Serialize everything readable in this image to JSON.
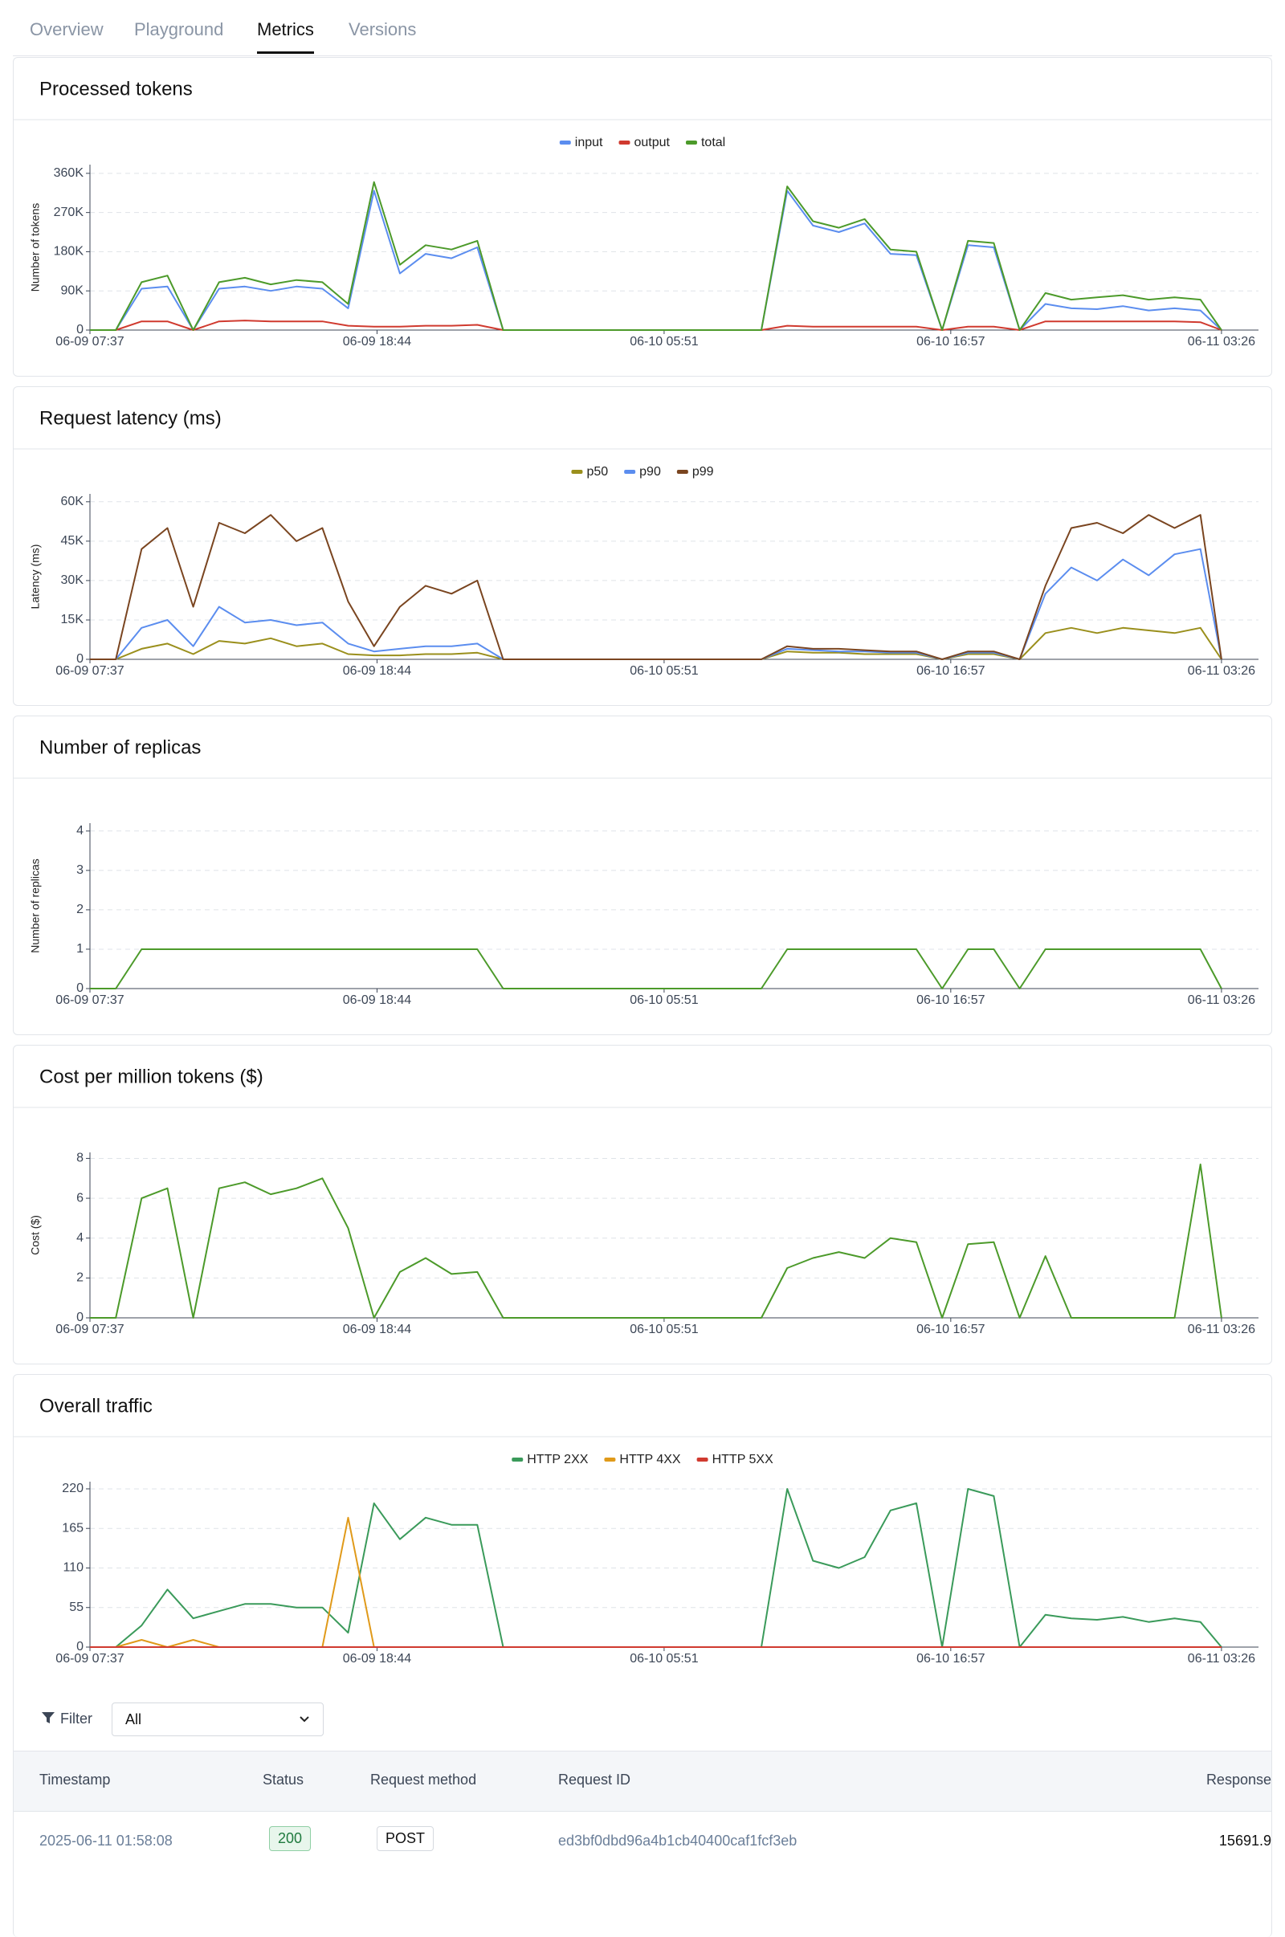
{
  "tabs": [
    "Overview",
    "Playground",
    "Metrics",
    "Versions"
  ],
  "active_tab": 2,
  "chart_data": [
    {
      "type": "line",
      "title": "Processed tokens",
      "y_label": "Number of tokens",
      "legend": true,
      "grid": true,
      "x": [
        "06-09 07:37",
        "06-09 08:37",
        "06-09 09:37",
        "06-09 10:37",
        "06-09 11:37",
        "06-09 12:37",
        "06-09 13:37",
        "06-09 14:37",
        "06-09 15:37",
        "06-09 16:37",
        "06-09 17:37",
        "06-09 18:37",
        "06-09 19:37",
        "06-09 20:37",
        "06-09 21:37",
        "06-09 22:37",
        "06-09 23:37",
        "06-10 00:37",
        "06-10 01:37",
        "06-10 02:37",
        "06-10 03:37",
        "06-10 04:37",
        "06-10 05:37",
        "06-10 06:37",
        "06-10 07:37",
        "06-10 08:37",
        "06-10 09:37",
        "06-10 10:37",
        "06-10 11:37",
        "06-10 12:37",
        "06-10 13:37",
        "06-10 14:37",
        "06-10 15:37",
        "06-10 16:37",
        "06-10 17:37",
        "06-10 18:37",
        "06-10 19:37",
        "06-10 20:37",
        "06-10 21:37",
        "06-10 22:37",
        "06-10 23:37",
        "06-11 00:37",
        "06-11 01:37",
        "06-11 02:37",
        "06-11 03:26"
      ],
      "xlim": [
        "06-09 07:37",
        "06-11 04:52"
      ],
      "xticks": [
        "06-09 07:37",
        "06-09 18:44",
        "06-10 05:51",
        "06-10 16:57",
        "06-11 03:26"
      ],
      "ylim": [
        0,
        380000
      ],
      "yticks": [
        0,
        {
          "value": 90000,
          "label": "90K"
        },
        {
          "value": 180000,
          "label": "180K"
        },
        {
          "value": 270000,
          "label": "270K"
        },
        {
          "value": 360000,
          "label": "360K"
        }
      ],
      "series": [
        {
          "name": "input",
          "color": "#5b8def",
          "values": [
            0,
            0,
            95000,
            100000,
            0,
            95000,
            100000,
            90000,
            100000,
            95000,
            50000,
            320000,
            130000,
            175000,
            165000,
            190000,
            0,
            0,
            0,
            0,
            0,
            0,
            0,
            0,
            0,
            0,
            0,
            320000,
            240000,
            225000,
            245000,
            175000,
            172000,
            0,
            195000,
            190000,
            0,
            60000,
            50000,
            48000,
            55000,
            45000,
            50000,
            45000,
            0
          ]
        },
        {
          "name": "output",
          "color": "#d03a2f",
          "values": [
            0,
            0,
            20000,
            20000,
            0,
            20000,
            22000,
            20000,
            20000,
            20000,
            10000,
            8000,
            8000,
            10000,
            10000,
            12000,
            0,
            0,
            0,
            0,
            0,
            0,
            0,
            0,
            0,
            0,
            0,
            10000,
            8000,
            8000,
            8000,
            8000,
            8000,
            0,
            8000,
            8000,
            0,
            20000,
            20000,
            20000,
            20000,
            20000,
            20000,
            18000,
            0
          ]
        },
        {
          "name": "total",
          "color": "#4c9a2a",
          "values": [
            0,
            0,
            110000,
            125000,
            0,
            110000,
            120000,
            105000,
            115000,
            110000,
            60000,
            340000,
            150000,
            195000,
            185000,
            205000,
            0,
            0,
            0,
            0,
            0,
            0,
            0,
            0,
            0,
            0,
            0,
            330000,
            250000,
            235000,
            255000,
            185000,
            180000,
            0,
            205000,
            200000,
            0,
            85000,
            70000,
            75000,
            80000,
            70000,
            75000,
            70000,
            0
          ]
        }
      ]
    },
    {
      "type": "line",
      "title": "Request latency (ms)",
      "y_label": "Latency (ms)",
      "legend": true,
      "grid": true,
      "x": [
        "06-09 07:37",
        "06-09 08:37",
        "06-09 09:37",
        "06-09 10:37",
        "06-09 11:37",
        "06-09 12:37",
        "06-09 13:37",
        "06-09 14:37",
        "06-09 15:37",
        "06-09 16:37",
        "06-09 17:37",
        "06-09 18:37",
        "06-09 19:37",
        "06-09 20:37",
        "06-09 21:37",
        "06-09 22:37",
        "06-09 23:37",
        "06-10 00:37",
        "06-10 01:37",
        "06-10 02:37",
        "06-10 03:37",
        "06-10 04:37",
        "06-10 05:37",
        "06-10 06:37",
        "06-10 07:37",
        "06-10 08:37",
        "06-10 09:37",
        "06-10 10:37",
        "06-10 11:37",
        "06-10 12:37",
        "06-10 13:37",
        "06-10 14:37",
        "06-10 15:37",
        "06-10 16:37",
        "06-10 17:37",
        "06-10 18:37",
        "06-10 19:37",
        "06-10 20:37",
        "06-10 21:37",
        "06-10 22:37",
        "06-10 23:37",
        "06-11 00:37",
        "06-11 01:37",
        "06-11 02:37",
        "06-11 03:26"
      ],
      "xlim": [
        "06-09 07:37",
        "06-11 04:52"
      ],
      "xticks": [
        "06-09 07:37",
        "06-09 18:44",
        "06-10 05:51",
        "06-10 16:57",
        "06-11 03:26"
      ],
      "ylim": [
        0,
        63000
      ],
      "yticks": [
        0,
        {
          "value": 15000,
          "label": "15K"
        },
        {
          "value": 30000,
          "label": "30K"
        },
        {
          "value": 45000,
          "label": "45K"
        },
        {
          "value": 60000,
          "label": "60K"
        }
      ],
      "series": [
        {
          "name": "p50",
          "color": "#9a8f1c",
          "values": [
            0,
            0,
            4000,
            6000,
            2000,
            7000,
            6000,
            8000,
            5000,
            6000,
            2000,
            1500,
            1500,
            2000,
            2000,
            2500,
            0,
            0,
            0,
            0,
            0,
            0,
            0,
            0,
            0,
            0,
            0,
            3000,
            2500,
            2500,
            2000,
            2000,
            2000,
            0,
            2000,
            2000,
            0,
            10000,
            12000,
            10000,
            12000,
            11000,
            10000,
            12000,
            0
          ]
        },
        {
          "name": "p90",
          "color": "#5b8def",
          "values": [
            0,
            0,
            12000,
            15000,
            5000,
            20000,
            14000,
            15000,
            13000,
            14000,
            6000,
            3000,
            4000,
            5000,
            5000,
            6000,
            0,
            0,
            0,
            0,
            0,
            0,
            0,
            0,
            0,
            0,
            0,
            4000,
            3500,
            3000,
            3000,
            2500,
            2500,
            0,
            2500,
            2500,
            0,
            25000,
            35000,
            30000,
            38000,
            32000,
            40000,
            42000,
            0
          ]
        },
        {
          "name": "p99",
          "color": "#7a4520",
          "values": [
            0,
            0,
            42000,
            50000,
            20000,
            52000,
            48000,
            55000,
            45000,
            50000,
            22000,
            5000,
            20000,
            28000,
            25000,
            30000,
            0,
            0,
            0,
            0,
            0,
            0,
            0,
            0,
            0,
            0,
            0,
            5000,
            4000,
            4000,
            3500,
            3000,
            3000,
            0,
            3000,
            3000,
            0,
            28000,
            50000,
            52000,
            48000,
            55000,
            50000,
            55000,
            0
          ]
        }
      ]
    },
    {
      "type": "line",
      "title": "Number of replicas",
      "y_label": "Number of replicas",
      "legend": false,
      "grid": true,
      "x": [
        "06-09 07:37",
        "06-09 08:37",
        "06-09 09:37",
        "06-09 10:37",
        "06-09 11:37",
        "06-09 12:37",
        "06-09 13:37",
        "06-09 14:37",
        "06-09 15:37",
        "06-09 16:37",
        "06-09 17:37",
        "06-09 18:37",
        "06-09 19:37",
        "06-09 20:37",
        "06-09 21:37",
        "06-09 22:37",
        "06-09 23:37",
        "06-10 00:37",
        "06-10 01:37",
        "06-10 02:37",
        "06-10 03:37",
        "06-10 04:37",
        "06-10 05:37",
        "06-10 06:37",
        "06-10 07:37",
        "06-10 08:37",
        "06-10 09:37",
        "06-10 10:37",
        "06-10 11:37",
        "06-10 12:37",
        "06-10 13:37",
        "06-10 14:37",
        "06-10 15:37",
        "06-10 16:37",
        "06-10 17:37",
        "06-10 18:37",
        "06-10 19:37",
        "06-10 20:37",
        "06-10 21:37",
        "06-10 22:37",
        "06-10 23:37",
        "06-11 00:37",
        "06-11 01:37",
        "06-11 02:37",
        "06-11 03:26"
      ],
      "xlim": [
        "06-09 07:37",
        "06-11 04:52"
      ],
      "xticks": [
        "06-09 07:37",
        "06-09 18:44",
        "06-10 05:51",
        "06-10 16:57",
        "06-11 03:26"
      ],
      "ylim": [
        0,
        4.2
      ],
      "yticks": [
        0,
        1,
        2,
        3,
        4
      ],
      "series": [
        {
          "name": "replicas",
          "color": "#4c9a2a",
          "values": [
            0,
            0,
            1,
            1,
            1,
            1,
            1,
            1,
            1,
            1,
            1,
            1,
            1,
            1,
            1,
            1,
            0,
            0,
            0,
            0,
            0,
            0,
            0,
            0,
            0,
            0,
            0,
            1,
            1,
            1,
            1,
            1,
            1,
            0,
            1,
            1,
            0,
            1,
            1,
            1,
            1,
            1,
            1,
            1,
            0
          ]
        }
      ]
    },
    {
      "type": "line",
      "title": "Cost per million tokens ($)",
      "y_label": "Cost ($)",
      "legend": false,
      "grid": true,
      "x": [
        "06-09 07:37",
        "06-09 08:37",
        "06-09 09:37",
        "06-09 10:37",
        "06-09 11:37",
        "06-09 12:37",
        "06-09 13:37",
        "06-09 14:37",
        "06-09 15:37",
        "06-09 16:37",
        "06-09 17:37",
        "06-09 18:37",
        "06-09 19:37",
        "06-09 20:37",
        "06-09 21:37",
        "06-09 22:37",
        "06-09 23:37",
        "06-10 00:37",
        "06-10 01:37",
        "06-10 02:37",
        "06-10 03:37",
        "06-10 04:37",
        "06-10 05:37",
        "06-10 06:37",
        "06-10 07:37",
        "06-10 08:37",
        "06-10 09:37",
        "06-10 10:37",
        "06-10 11:37",
        "06-10 12:37",
        "06-10 13:37",
        "06-10 14:37",
        "06-10 15:37",
        "06-10 16:37",
        "06-10 17:37",
        "06-10 18:37",
        "06-10 19:37",
        "06-10 20:37",
        "06-10 21:37",
        "06-10 22:37",
        "06-10 23:37",
        "06-11 00:37",
        "06-11 01:37",
        "06-11 02:37",
        "06-11 03:26"
      ],
      "xlim": [
        "06-09 07:37",
        "06-11 04:52"
      ],
      "xticks": [
        "06-09 07:37",
        "06-09 18:44",
        "06-10 05:51",
        "06-10 16:57",
        "06-11 03:26"
      ],
      "ylim": [
        0,
        8.3
      ],
      "yticks": [
        0,
        2,
        4,
        6,
        8
      ],
      "series": [
        {
          "name": "cost",
          "color": "#4c9a2a",
          "values": [
            0,
            0,
            6,
            6.5,
            0,
            6.5,
            6.8,
            6.2,
            6.5,
            7,
            4.5,
            0,
            2.3,
            3,
            2.2,
            2.3,
            0,
            0,
            0,
            0,
            0,
            0,
            0,
            0,
            0,
            0,
            0,
            2.5,
            3,
            3.3,
            3,
            4,
            3.8,
            0,
            3.7,
            3.8,
            0,
            3.1,
            0,
            0,
            0,
            0,
            0,
            7.7,
            0
          ]
        }
      ]
    },
    {
      "type": "line",
      "title": "Overall traffic",
      "legend": true,
      "grid": true,
      "x": [
        "06-09 07:37",
        "06-09 08:37",
        "06-09 09:37",
        "06-09 10:37",
        "06-09 11:37",
        "06-09 12:37",
        "06-09 13:37",
        "06-09 14:37",
        "06-09 15:37",
        "06-09 16:37",
        "06-09 17:37",
        "06-09 18:37",
        "06-09 19:37",
        "06-09 20:37",
        "06-09 21:37",
        "06-09 22:37",
        "06-09 23:37",
        "06-10 00:37",
        "06-10 01:37",
        "06-10 02:37",
        "06-10 03:37",
        "06-10 04:37",
        "06-10 05:37",
        "06-10 06:37",
        "06-10 07:37",
        "06-10 08:37",
        "06-10 09:37",
        "06-10 10:37",
        "06-10 11:37",
        "06-10 12:37",
        "06-10 13:37",
        "06-10 14:37",
        "06-10 15:37",
        "06-10 16:37",
        "06-10 17:37",
        "06-10 18:37",
        "06-10 19:37",
        "06-10 20:37",
        "06-10 21:37",
        "06-10 22:37",
        "06-10 23:37",
        "06-11 00:37",
        "06-11 01:37",
        "06-11 02:37",
        "06-11 03:26"
      ],
      "xlim": [
        "06-09 07:37",
        "06-11 04:52"
      ],
      "xticks": [
        "06-09 07:37",
        "06-09 18:44",
        "06-10 05:51",
        "06-10 16:57",
        "06-11 03:26"
      ],
      "ylim": [
        0,
        230
      ],
      "yticks": [
        0,
        55,
        110,
        165,
        220
      ],
      "series": [
        {
          "name": "HTTP 2XX",
          "color": "#3a9a5a",
          "values": [
            0,
            0,
            30,
            80,
            40,
            50,
            60,
            60,
            55,
            55,
            20,
            200,
            150,
            180,
            170,
            170,
            0,
            0,
            0,
            0,
            0,
            0,
            0,
            0,
            0,
            0,
            0,
            220,
            120,
            110,
            125,
            190,
            200,
            0,
            220,
            210,
            0,
            45,
            40,
            38,
            42,
            35,
            40,
            35,
            0
          ]
        },
        {
          "name": "HTTP 4XX",
          "color": "#e09a1a",
          "values": [
            0,
            0,
            10,
            0,
            10,
            0,
            0,
            0,
            0,
            0,
            180,
            0,
            0,
            0,
            0,
            0,
            0,
            0,
            0,
            0,
            0,
            0,
            0,
            0,
            0,
            0,
            0,
            0,
            0,
            0,
            0,
            0,
            0,
            0,
            0,
            0,
            0,
            0,
            0,
            0,
            0,
            0,
            0,
            0,
            0
          ]
        },
        {
          "name": "HTTP 5XX",
          "color": "#d03a2f",
          "values": [
            0,
            0,
            0,
            0,
            0,
            0,
            0,
            0,
            0,
            0,
            0,
            0,
            0,
            0,
            0,
            0,
            0,
            0,
            0,
            0,
            0,
            0,
            0,
            0,
            0,
            0,
            0,
            0,
            0,
            0,
            0,
            0,
            0,
            0,
            0,
            0,
            0,
            0,
            0,
            0,
            0,
            0,
            0,
            0,
            0
          ]
        }
      ]
    }
  ],
  "filter": {
    "label": "Filter",
    "value": "All"
  },
  "table": {
    "columns": [
      "Timestamp",
      "Status",
      "Request method",
      "Request ID",
      "Response"
    ],
    "rows": [
      [
        "2025-06-11 01:58:08",
        200,
        "POST",
        "ed3bf0dbd96a4b1cb40400caf1fcf3eb",
        15691.9
      ]
    ]
  }
}
